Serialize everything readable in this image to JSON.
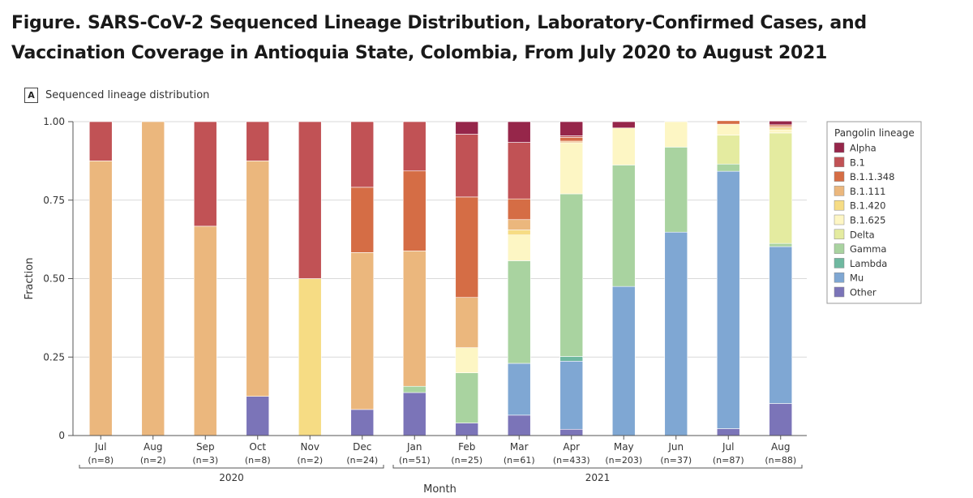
{
  "figure": {
    "label": "Figure.",
    "title": "SARS-CoV-2 Sequenced Lineage Distribution, Laboratory-Confirmed Cases, and Vaccination Coverage in Antioquia State, Colombia, From July 2020 to August 2021"
  },
  "panel": {
    "letter": "A",
    "title": "Sequenced lineage distribution"
  },
  "chart_data": {
    "type": "bar",
    "stacked": true,
    "ylabel": "Fraction",
    "xlabel": "Month",
    "ylim": [
      0,
      1
    ],
    "yticks": [
      "0",
      "0.25",
      "0.50",
      "0.75",
      "1.00"
    ],
    "yticks_values": [
      0,
      0.25,
      0.5,
      0.75,
      1.0
    ],
    "grid": true,
    "legend_position": "right",
    "legend_title": "Pangolin lineage",
    "categories": [
      "Jul",
      "Aug",
      "Sep",
      "Oct",
      "Nov",
      "Dec",
      "Jan",
      "Feb",
      "Mar",
      "Apr",
      "May",
      "Jun",
      "Jul",
      "Aug"
    ],
    "counts": [
      "(n=8)",
      "(n=2)",
      "(n=3)",
      "(n=8)",
      "(n=2)",
      "(n=24)",
      "(n=51)",
      "(n=25)",
      "(n=61)",
      "(n=433)",
      "(n=203)",
      "(n=37)",
      "(n=87)",
      "(n=88)"
    ],
    "year_groups": [
      {
        "label": "2020",
        "start": 0,
        "end": 5
      },
      {
        "label": "2021",
        "start": 6,
        "end": 13
      }
    ],
    "series": [
      {
        "name": "Other",
        "color": "#7b74b8",
        "values": [
          0,
          0,
          0,
          0.125,
          0,
          0.083,
          0.137,
          0.04,
          0.065,
          0.02,
          0,
          0,
          0.022,
          0.102
        ]
      },
      {
        "name": "Mu",
        "color": "#7fa7d3",
        "values": [
          0,
          0,
          0,
          0,
          0,
          0,
          0,
          0,
          0.165,
          0.217,
          0.475,
          0.648,
          0.82,
          0.5
        ]
      },
      {
        "name": "Lambda",
        "color": "#6fb8a0",
        "values": [
          0,
          0,
          0,
          0,
          0,
          0,
          0,
          0,
          0,
          0.015,
          0,
          0,
          0,
          0
        ]
      },
      {
        "name": "Gamma",
        "color": "#a9d3a0",
        "values": [
          0,
          0,
          0,
          0,
          0,
          0,
          0.02,
          0.16,
          0.327,
          0.518,
          0.387,
          0.271,
          0.023,
          0.01
        ]
      },
      {
        "name": "Delta",
        "color": "#e4eba0",
        "values": [
          0,
          0,
          0,
          0,
          0,
          0,
          0,
          0,
          0,
          0,
          0,
          0,
          0.092,
          0.352
        ]
      },
      {
        "name": "B.1.625",
        "color": "#fdf6c4",
        "values": [
          0,
          0,
          0,
          0,
          0,
          0,
          0,
          0.08,
          0.082,
          0.163,
          0.118,
          0.081,
          0.035,
          0.01
        ]
      },
      {
        "name": "B.1.420",
        "color": "#f6dc84",
        "values": [
          0,
          0,
          0,
          0,
          0.5,
          0,
          0,
          0,
          0.016,
          0,
          0,
          0,
          0,
          0.006
        ]
      },
      {
        "name": "B.1.111",
        "color": "#ebb77d",
        "values": [
          0.875,
          1.0,
          0.667,
          0.75,
          0,
          0.5,
          0.431,
          0.16,
          0.033,
          0.005,
          0,
          0,
          0,
          0.005
        ]
      },
      {
        "name": "B.1.1.348",
        "color": "#d56d45",
        "values": [
          0,
          0,
          0,
          0,
          0,
          0.208,
          0.255,
          0.32,
          0.066,
          0.012,
          0,
          0,
          0.011,
          0.005
        ]
      },
      {
        "name": "B.1",
        "color": "#c15255",
        "values": [
          0.125,
          0,
          0.333,
          0.125,
          0.5,
          0.209,
          0.157,
          0.2,
          0.18,
          0.005,
          0,
          0,
          0,
          0
        ]
      },
      {
        "name": "Alpha",
        "color": "#96264a",
        "values": [
          0,
          0,
          0,
          0,
          0,
          0,
          0,
          0.04,
          0.066,
          0.045,
          0.02,
          0,
          0,
          0.012
        ]
      }
    ],
    "legend_order": [
      "Alpha",
      "B.1",
      "B.1.1.348",
      "B.1.111",
      "B.1.420",
      "B.1.625",
      "Delta",
      "Gamma",
      "Lambda",
      "Mu",
      "Other"
    ]
  }
}
